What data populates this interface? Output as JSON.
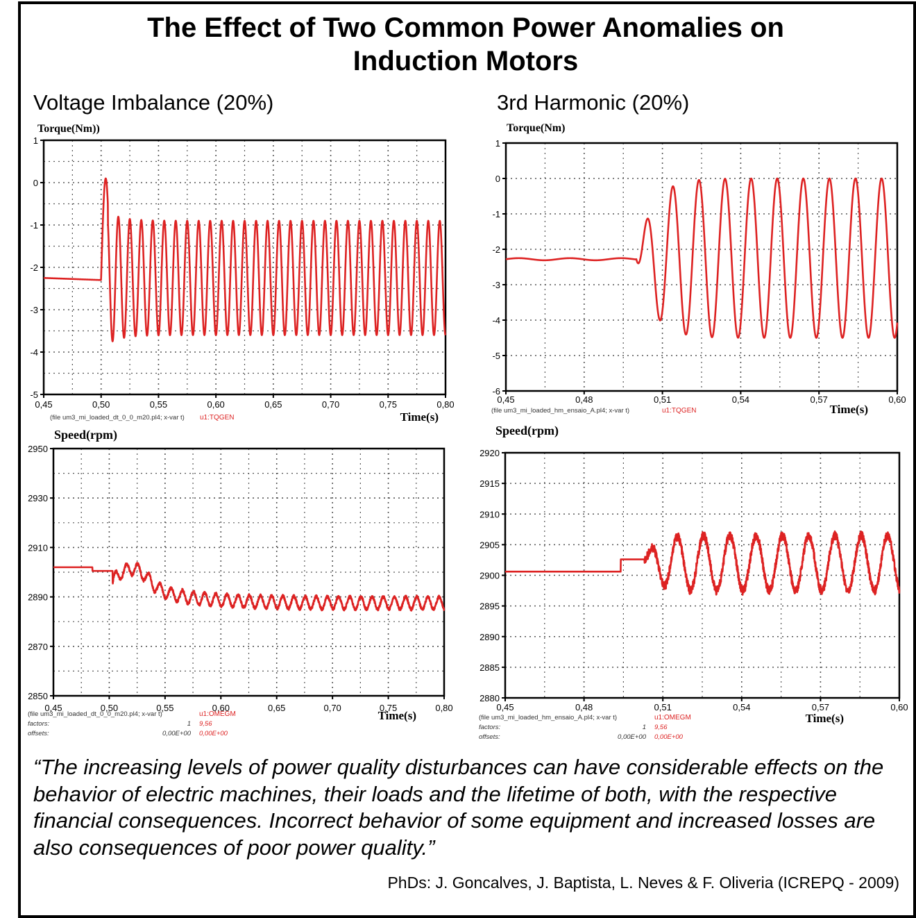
{
  "page": {
    "title_line1": "The Effect of Two Common Power Anomalies on",
    "title_line2": "Induction Motors",
    "left_subtitle": "Voltage Imbalance (20%)",
    "right_subtitle": "3rd Harmonic (20%)",
    "quote": "“The increasing levels of power quality disturbances can have considerable effects on the behavior of electric machines, their loads and the lifetime of both, with the respective financial consequences. Incorrect behavior of some equipment and increased losses are also consequences of poor power quality.”",
    "credit": "PhDs: J. Goncalves, J. Baptista, L. Neves & F. Oliveria (ICREPQ - 2009)"
  },
  "colors": {
    "trace": "#dd2222",
    "axis": "#000000",
    "grid": "#555555",
    "footer_red": "#dd2222"
  },
  "chart_data": [
    {
      "id": "torque-imbalance",
      "type": "line",
      "ylabel": "Torque(Nm))",
      "xlabel": "Time(s)",
      "xlim": [
        0.45,
        0.8
      ],
      "ylim": [
        -5,
        1
      ],
      "x_ticks": [
        0.45,
        0.5,
        0.55,
        0.6,
        0.65,
        0.7,
        0.75,
        0.8
      ],
      "x_tick_labels": [
        "0,45",
        "0,50",
        "0,55",
        "0,60",
        "0,65",
        "0,70",
        "0,75",
        "0,80"
      ],
      "y_ticks": [
        1,
        0,
        -1,
        -2,
        -3,
        -4,
        -5
      ],
      "y_tick_labels": [
        "1",
        "0",
        "-1",
        "-2",
        "-3",
        "-4",
        "-5"
      ],
      "grid": true,
      "footer": [
        "(file um3_mi_loaded_dt_0_0_m20.pl4; x-var t)",
        "u1:TQGEN"
      ],
      "signal": {
        "steady": -2.25,
        "disturbance_start": 0.5,
        "frequency_hz": 100,
        "min": -3.6,
        "max": -0.9,
        "initial_peak": 0.1,
        "initial_min": -3.9
      },
      "series": [
        {
          "name": "u1:TQGEN"
        }
      ]
    },
    {
      "id": "speed-imbalance",
      "type": "line",
      "ylabel": "Speed(rpm)",
      "xlabel": "Time(s)",
      "xlim": [
        0.45,
        0.8
      ],
      "ylim": [
        2850,
        2950
      ],
      "x_ticks": [
        0.45,
        0.5,
        0.55,
        0.6,
        0.65,
        0.7,
        0.75,
        0.8
      ],
      "x_tick_labels": [
        "0,45",
        "0,50",
        "0,55",
        "0,60",
        "0,65",
        "0,70",
        "0,75",
        "0,80"
      ],
      "y_ticks": [
        2950,
        2930,
        2910,
        2890,
        2870,
        2850
      ],
      "y_tick_labels": [
        "2950",
        "2930",
        "2910",
        "2890",
        "2870",
        "2850"
      ],
      "grid": true,
      "footer": [
        "(file um3_mi_loaded_dt_0_0_m20.pl4; x-var t)",
        "u1:OMEGM"
      ],
      "footer_rows": [
        [
          "factors:",
          "1",
          "9,56"
        ],
        [
          "offsets:",
          "0,00E+00",
          "0,00E+00"
        ]
      ],
      "signal": {
        "steady": 2902,
        "step_to": 2900.5,
        "step_time": 0.485,
        "disturbance_start": 0.503,
        "settled_mean": 2887.5,
        "ripple_amplitude": 2.5,
        "frequency_hz": 100
      },
      "series": [
        {
          "name": "u1:OMEGM"
        }
      ]
    },
    {
      "id": "torque-harmonic",
      "type": "line",
      "ylabel": "Torque(Nm)",
      "xlabel": "Time(s)",
      "xlim": [
        0.45,
        0.6
      ],
      "ylim": [
        -6,
        1
      ],
      "x_ticks": [
        0.45,
        0.48,
        0.51,
        0.54,
        0.57,
        0.6
      ],
      "x_tick_labels": [
        "0,45",
        "0,48",
        "0,51",
        "0,54",
        "0,57",
        "0,60"
      ],
      "y_ticks": [
        1,
        0,
        -1,
        -2,
        -3,
        -4,
        -5,
        -6
      ],
      "y_tick_labels": [
        "1",
        "0",
        "-1",
        "-2",
        "-3",
        "-4",
        "-5",
        "-6"
      ],
      "grid": true,
      "footer": [
        "(file um3_mi_loaded_hm_ensaio_A.pl4; x-var t)",
        "u1:TQGEN"
      ],
      "signal": {
        "steady": -2.28,
        "disturbance_start": 0.5,
        "frequency_hz": 100,
        "min": -4.5,
        "max": 0.0
      },
      "series": [
        {
          "name": "u1:TQGEN"
        }
      ]
    },
    {
      "id": "speed-harmonic",
      "type": "line",
      "ylabel": "Speed(rpm)",
      "xlabel": "Time(s)",
      "xlim": [
        0.45,
        0.6
      ],
      "ylim": [
        2880,
        2920
      ],
      "x_ticks": [
        0.45,
        0.48,
        0.51,
        0.54,
        0.57,
        0.6
      ],
      "x_tick_labels": [
        "0,45",
        "0,48",
        "0,51",
        "0,54",
        "0,57",
        "0,60"
      ],
      "y_ticks": [
        2920,
        2915,
        2910,
        2905,
        2900,
        2895,
        2890,
        2885,
        2880
      ],
      "y_tick_labels": [
        "2920",
        "2915",
        "2910",
        "2905",
        "2900",
        "2895",
        "2890",
        "2885",
        "2880"
      ],
      "grid": true,
      "footer": [
        "(file um3_mi_loaded_hm_ensaio_A.pl4; x-var t)",
        "u1:OMEGM"
      ],
      "footer_rows": [
        [
          "factors:",
          "1",
          "9,56"
        ],
        [
          "offsets:",
          "0,00E+00",
          "0,00E+00"
        ]
      ],
      "signal": {
        "steady": 2900.6,
        "step_to": 2902.6,
        "step_time": 0.494,
        "disturbance_start": 0.503,
        "settled_mean": 2902,
        "oscillation_amplitude": 4.5,
        "frequency_hz": 100
      },
      "series": [
        {
          "name": "u1:OMEGM"
        }
      ]
    }
  ]
}
